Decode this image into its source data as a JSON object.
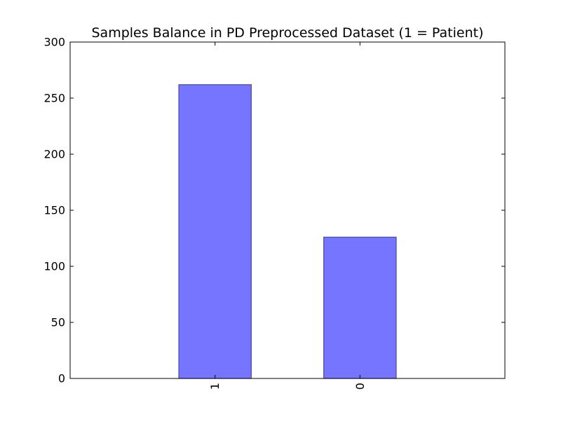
{
  "chart_data": {
    "type": "bar",
    "title": "Samples Balance in PD Preprocessed Dataset (1 = Patient)",
    "xlabel": "",
    "ylabel": "",
    "categories": [
      "1",
      "0"
    ],
    "values": [
      262,
      126
    ],
    "ylim": [
      0,
      300
    ],
    "yticks": [
      0,
      50,
      100,
      150,
      200,
      250,
      300
    ],
    "x_tick_rotation": "vertical",
    "grid": false,
    "legend": "none",
    "bar_color": "#7575ff",
    "bar_edge_color": "#4b4b9e"
  }
}
